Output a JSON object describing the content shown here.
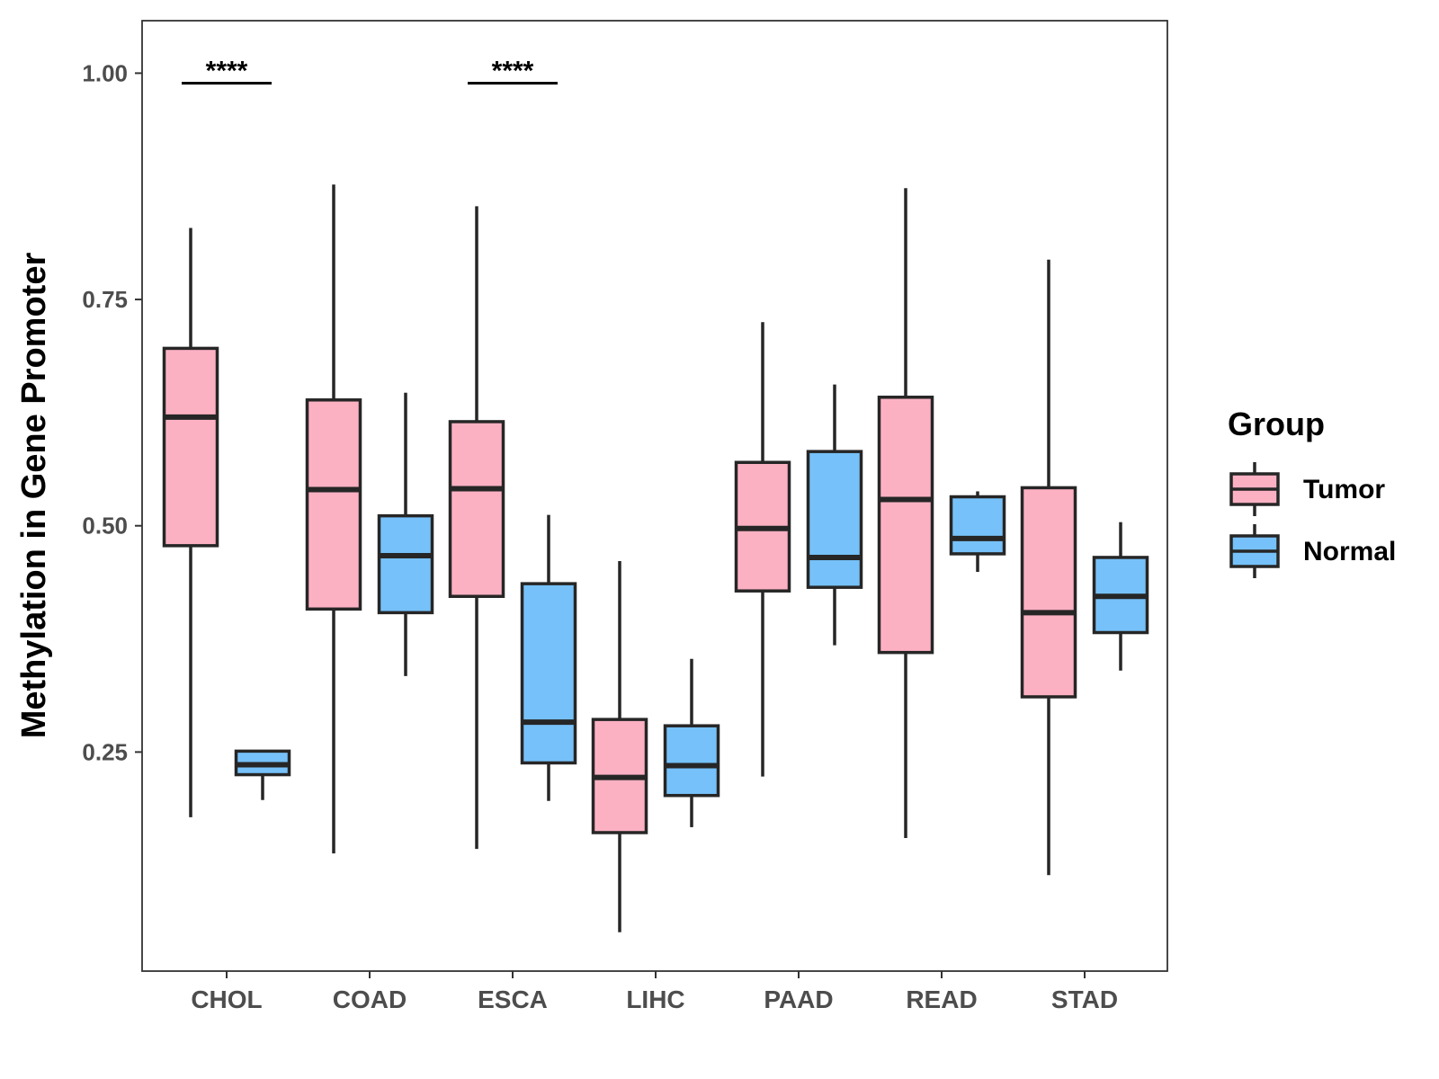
{
  "chart_data": {
    "type": "boxplot",
    "title": "",
    "xlabel": "",
    "ylabel": "Methylation in Gene Promoter",
    "ylim": [
      0.008,
      1.058
    ],
    "yticks": [
      0.25,
      0.5,
      0.75,
      1.0
    ],
    "ytick_labels": [
      "0.25",
      "0.50",
      "0.75",
      "1.00"
    ],
    "categories": [
      "CHOL",
      "COAD",
      "ESCA",
      "LIHC",
      "PAAD",
      "READ",
      "STAD"
    ],
    "series": [
      {
        "name": "Tumor",
        "color": "#fcb1c3",
        "boxes": [
          {
            "min": 0.178,
            "q1": 0.478,
            "median": 0.62,
            "q3": 0.696,
            "max": 0.829
          },
          {
            "min": 0.138,
            "q1": 0.408,
            "median": 0.54,
            "q3": 0.639,
            "max": 0.877
          },
          {
            "min": 0.143,
            "q1": 0.422,
            "median": 0.541,
            "q3": 0.615,
            "max": 0.853
          },
          {
            "min": 0.051,
            "q1": 0.161,
            "median": 0.222,
            "q3": 0.286,
            "max": 0.461
          },
          {
            "min": 0.223,
            "q1": 0.428,
            "median": 0.497,
            "q3": 0.57,
            "max": 0.725
          },
          {
            "min": 0.155,
            "q1": 0.36,
            "median": 0.529,
            "q3": 0.642,
            "max": 0.873
          },
          {
            "min": 0.114,
            "q1": 0.311,
            "median": 0.404,
            "q3": 0.542,
            "max": 0.794
          }
        ]
      },
      {
        "name": "Normal",
        "color": "#76c1f9",
        "boxes": [
          {
            "min": 0.197,
            "q1": 0.225,
            "median": 0.236,
            "q3": 0.251,
            "max": 0.251
          },
          {
            "min": 0.334,
            "q1": 0.404,
            "median": 0.467,
            "q3": 0.511,
            "max": 0.647
          },
          {
            "min": 0.196,
            "q1": 0.238,
            "median": 0.283,
            "q3": 0.436,
            "max": 0.512
          },
          {
            "min": 0.167,
            "q1": 0.202,
            "median": 0.235,
            "q3": 0.279,
            "max": 0.353
          },
          {
            "min": 0.368,
            "q1": 0.432,
            "median": 0.465,
            "q3": 0.582,
            "max": 0.656
          },
          {
            "min": 0.449,
            "q1": 0.469,
            "median": 0.486,
            "q3": 0.532,
            "max": 0.538
          },
          {
            "min": 0.34,
            "q1": 0.382,
            "median": 0.422,
            "q3": 0.465,
            "max": 0.504
          }
        ]
      }
    ],
    "annotations": [
      {
        "category": "CHOL",
        "text": "****",
        "y": 0.989
      },
      {
        "category": "ESCA",
        "text": "****",
        "y": 0.989
      }
    ],
    "legend": {
      "title": "Group",
      "position": "right"
    },
    "grid": false
  }
}
